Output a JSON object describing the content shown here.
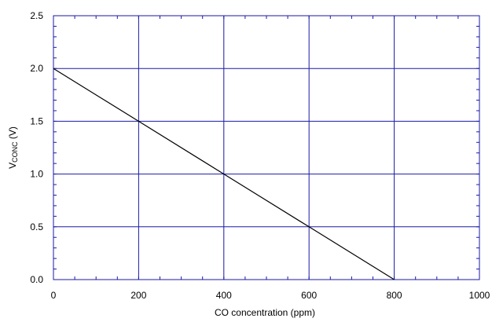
{
  "chart_data": {
    "type": "line",
    "title": "",
    "xlabel": "CO concentration (ppm)",
    "ylabel_main": "V",
    "ylabel_sub": "CONC",
    "ylabel_unit": " (V)",
    "xlim": [
      0,
      1000
    ],
    "ylim": [
      0,
      2.5
    ],
    "x_ticks": [
      0,
      200,
      400,
      600,
      800,
      1000
    ],
    "x_tick_labels": [
      "0",
      "200",
      "400",
      "600",
      "800",
      "1000"
    ],
    "y_ticks": [
      0,
      0.5,
      1.0,
      1.5,
      2.0,
      2.5
    ],
    "y_tick_labels": [
      "0.0",
      "0.5",
      "1.0",
      "1.5",
      "2.0",
      "2.5"
    ],
    "grid": true,
    "grid_color": "#1a1aa6",
    "line_color": "#000000",
    "series": [
      {
        "x": [
          0,
          200,
          400,
          600,
          800
        ],
        "y": [
          2.0,
          1.5,
          1.0,
          0.5,
          0.0
        ]
      }
    ]
  }
}
